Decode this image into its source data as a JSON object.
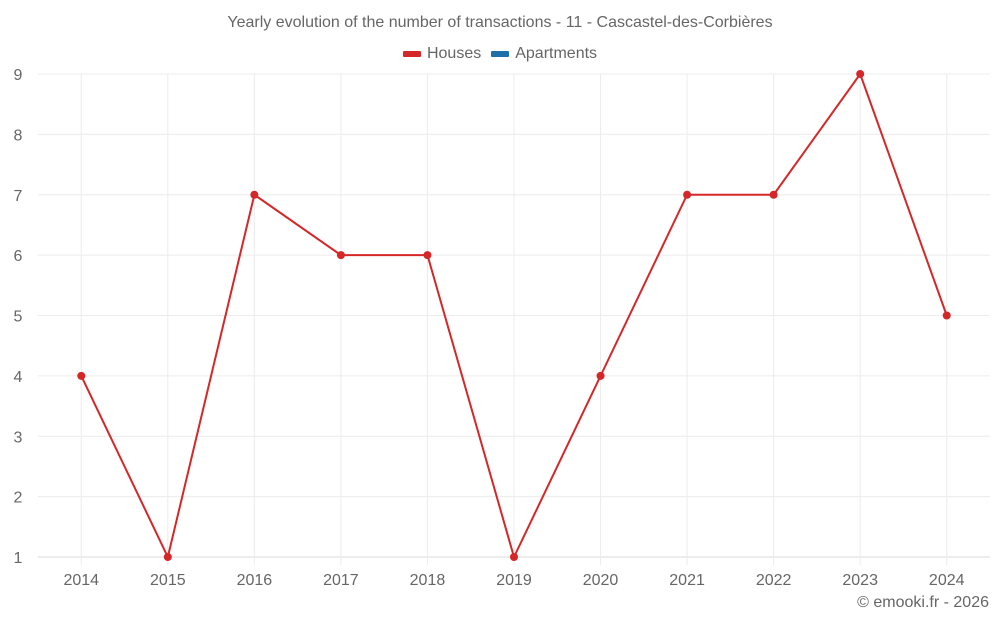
{
  "chart_data": {
    "type": "line",
    "title": "Yearly evolution of the number of transactions - 11 - Cascastel-des-Corbières",
    "categories": [
      "2014",
      "2015",
      "2016",
      "2017",
      "2018",
      "2019",
      "2020",
      "2021",
      "2022",
      "2023",
      "2024"
    ],
    "series": [
      {
        "name": "Houses",
        "color": "#d62728",
        "values": [
          4,
          1,
          7,
          6,
          6,
          1,
          4,
          7,
          7,
          9,
          5
        ]
      },
      {
        "name": "Apartments",
        "color": "#1f6fa8",
        "values": []
      }
    ],
    "xlabel": "",
    "ylabel": "",
    "ylim": [
      1,
      9
    ],
    "yticks": [
      1,
      2,
      3,
      4,
      5,
      6,
      7,
      8,
      9
    ],
    "grid": true,
    "legend_position": "top"
  },
  "legend": [
    {
      "label": "Houses",
      "color": "#d62728"
    },
    {
      "label": "Apartments",
      "color": "#1f6fa8"
    }
  ],
  "credit": "© emooki.fr - 2026"
}
